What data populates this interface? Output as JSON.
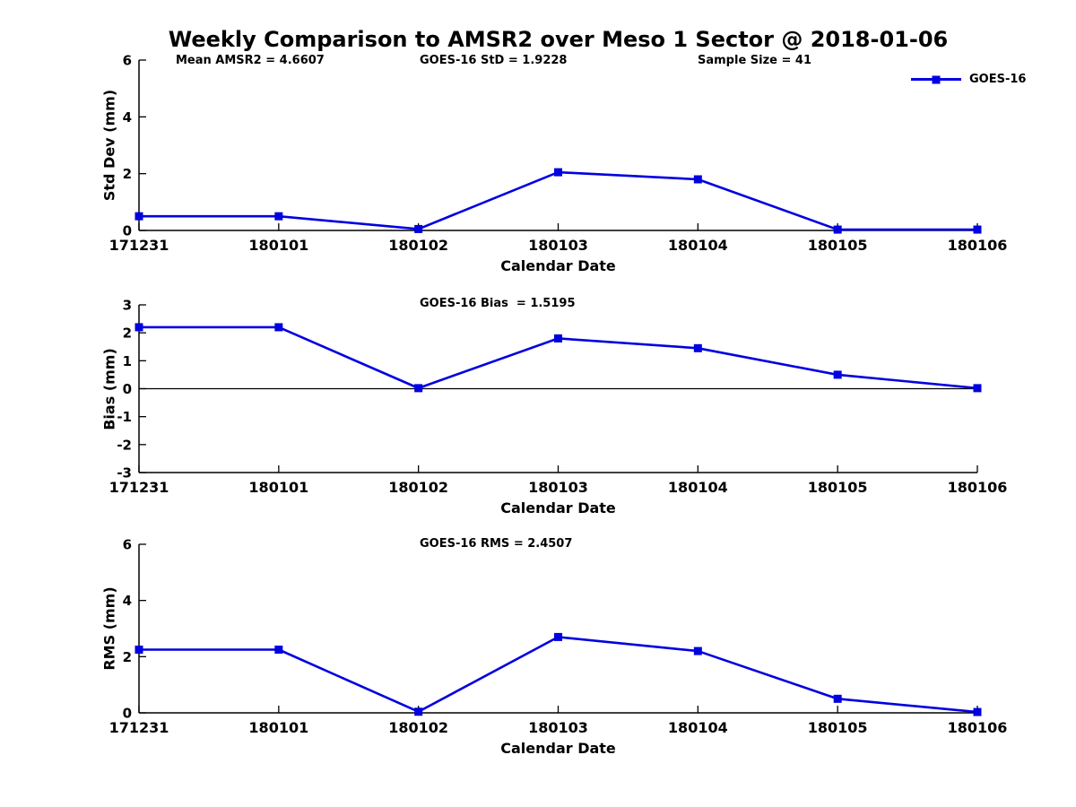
{
  "figure": {
    "title": "Weekly Comparison to AMSR2 over Meso 1 Sector @ 2018-01-06",
    "line_color": "#0000e0",
    "axis_color": "#000000",
    "legend_label": "GOES-16"
  },
  "chart_data": [
    {
      "type": "line",
      "name": "std-dev",
      "categories": [
        "171231",
        "180101",
        "180102",
        "180103",
        "180104",
        "180105",
        "180106"
      ],
      "series": [
        {
          "name": "GOES-16",
          "values": [
            0.5,
            0.5,
            0.05,
            2.05,
            1.8,
            0.03,
            0.03
          ]
        }
      ],
      "title": "",
      "xlabel": "Calendar Date",
      "ylabel": "Std Dev (mm)",
      "ylim": [
        0,
        6
      ],
      "yticks": [
        0,
        2,
        4,
        6
      ],
      "zero_line": false,
      "grid": false,
      "legend_position": "top-right",
      "annotations": [
        "Mean AMSR2 = 4.6607",
        "GOES-16 StD = 1.9228",
        "Sample Size = 41"
      ]
    },
    {
      "type": "line",
      "name": "bias",
      "categories": [
        "171231",
        "180101",
        "180102",
        "180103",
        "180104",
        "180105",
        "180106"
      ],
      "series": [
        {
          "name": "GOES-16",
          "values": [
            2.2,
            2.2,
            0.02,
            1.8,
            1.45,
            0.5,
            0.02
          ]
        }
      ],
      "title": "",
      "xlabel": "Calendar Date",
      "ylabel": "Bias (mm)",
      "ylim": [
        -3,
        3
      ],
      "yticks": [
        -3,
        -2,
        -1,
        0,
        1,
        2,
        3
      ],
      "zero_line": true,
      "grid": false,
      "legend_position": "none",
      "annotations": [
        "GOES-16 Bias  = 1.5195"
      ]
    },
    {
      "type": "line",
      "name": "rms",
      "categories": [
        "171231",
        "180101",
        "180102",
        "180103",
        "180104",
        "180105",
        "180106"
      ],
      "series": [
        {
          "name": "GOES-16",
          "values": [
            2.25,
            2.25,
            0.04,
            2.7,
            2.2,
            0.5,
            0.03
          ]
        }
      ],
      "title": "",
      "xlabel": "Calendar Date",
      "ylabel": "RMS (mm)",
      "ylim": [
        0,
        6
      ],
      "yticks": [
        0,
        2,
        4,
        6
      ],
      "zero_line": false,
      "grid": false,
      "legend_position": "none",
      "annotations": [
        "GOES-16 RMS = 2.4507"
      ]
    }
  ]
}
